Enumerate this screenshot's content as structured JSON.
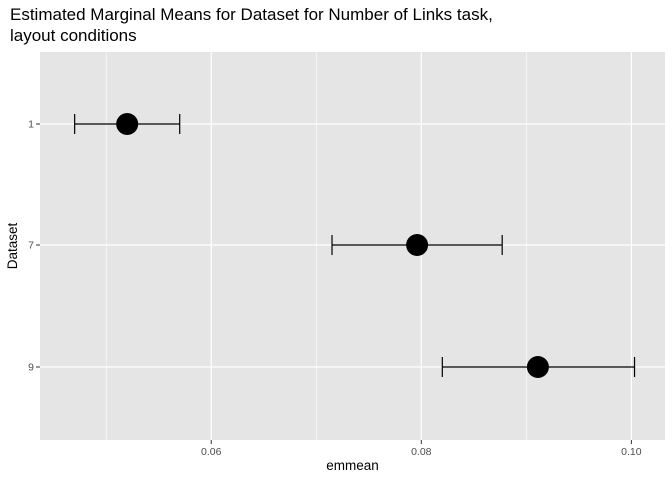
{
  "chart_data": {
    "type": "scatter",
    "title_lines": [
      "Estimated Marginal Means for Dataset for Number of Links task,",
      "layout conditions"
    ],
    "xlabel": "emmean",
    "ylabel": "Dataset",
    "xlim": [
      0.0437,
      0.1032
    ],
    "x_ticks": [
      0.06,
      0.08,
      0.1
    ],
    "x_tick_labels": [
      "0.06",
      "0.08",
      "0.10"
    ],
    "categories": [
      "1",
      "7",
      "9"
    ],
    "points": [
      {
        "category": "1",
        "emmean": 0.052,
        "lower": 0.047,
        "upper": 0.057
      },
      {
        "category": "7",
        "emmean": 0.0796,
        "lower": 0.0715,
        "upper": 0.0877
      },
      {
        "category": "9",
        "emmean": 0.0911,
        "lower": 0.082,
        "upper": 0.1003
      }
    ],
    "panel_background": "#e5e5e5",
    "grid": true,
    "grid_color": "#ffffff",
    "point_color": "#000000"
  }
}
